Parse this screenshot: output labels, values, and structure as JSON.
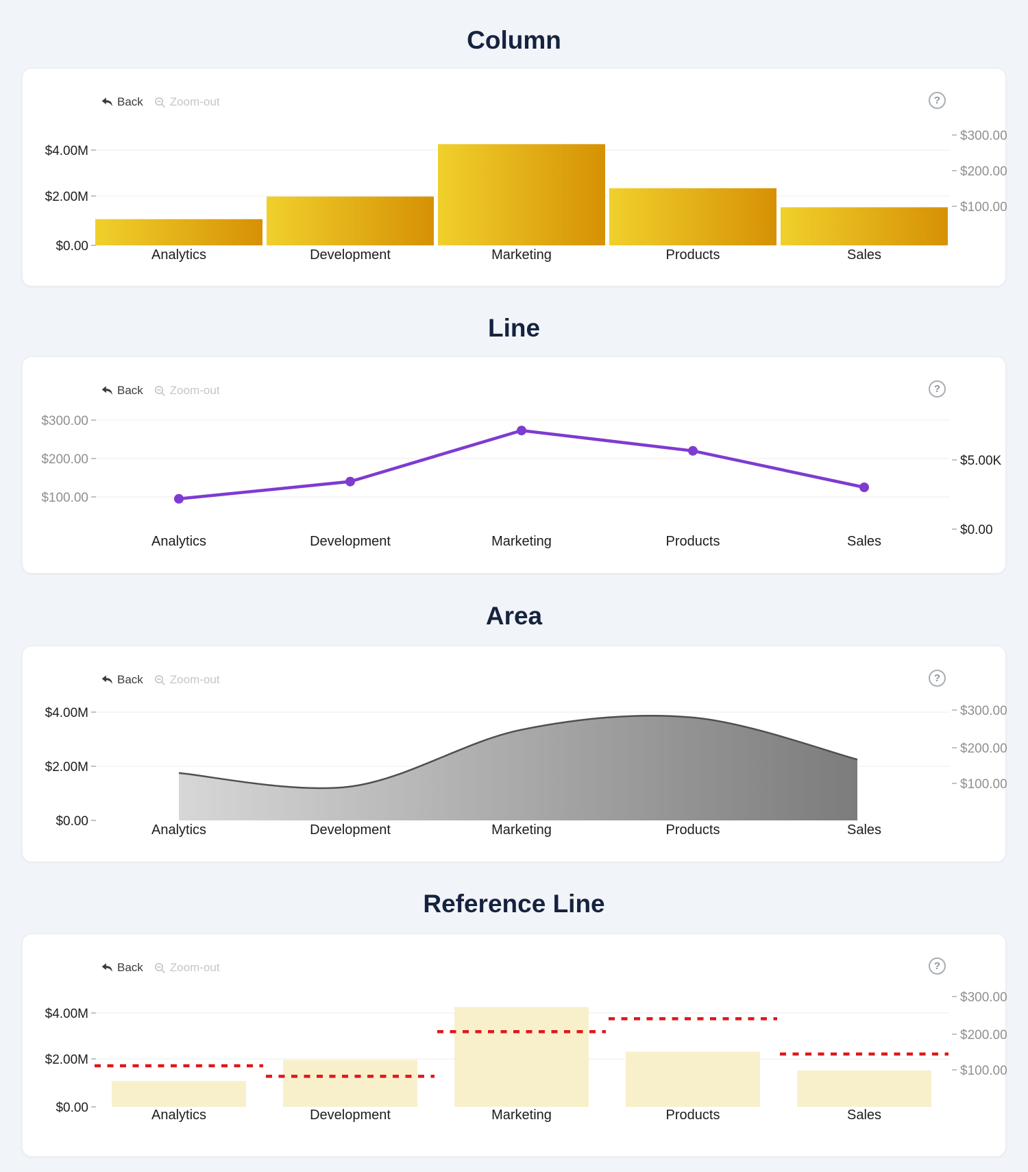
{
  "page": {
    "background": "#F1F4F9"
  },
  "toolbar": {
    "back": "Back",
    "zoom_out": "Zoom-out",
    "help": "?"
  },
  "colors": {
    "title": "#16233E",
    "bar_gradient_start": "#F0D02C",
    "bar_gradient_end": "#D69104",
    "line": "#7E3BD0",
    "area_gradient_start": "#D7D7D7",
    "area_gradient_end": "#7C7C7C",
    "area_stroke": "#4F4F4F",
    "reference_bar": "#F8F0CB",
    "reference_line": "#E0161A",
    "grid": "#ECECEC",
    "tick": "#ADADAD",
    "axis_primary": "#1D1D1D",
    "axis_secondary": "#8F8F8F",
    "category": "#1C1C1C"
  },
  "chart_data": [
    {
      "type": "bar",
      "title": "Column",
      "categories": [
        "Analytics",
        "Development",
        "Marketing",
        "Products",
        "Sales"
      ],
      "values_millions": [
        1.1,
        2.05,
        4.25,
        2.4,
        1.6
      ],
      "left_axis_ticks": [
        "$0.00",
        "$2.00M",
        "$4.00M"
      ],
      "right_axis_ticks": [
        "$100.00",
        "$200.00",
        "$300.00"
      ],
      "ylim_left": [
        0,
        4600000
      ],
      "grid": "horizontal",
      "legend": "none"
    },
    {
      "type": "line",
      "title": "Line",
      "categories": [
        "Analytics",
        "Development",
        "Marketing",
        "Products",
        "Sales"
      ],
      "values": [
        95,
        140,
        273,
        220,
        125
      ],
      "left_axis_ticks": [
        "$100.00",
        "$200.00",
        "$300.00"
      ],
      "right_axis_ticks": [
        "$0.00",
        "$5.00K"
      ],
      "grid": "horizontal",
      "legend": "none"
    },
    {
      "type": "area",
      "title": "Area",
      "categories": [
        "Analytics",
        "Development",
        "Marketing",
        "Products",
        "Sales"
      ],
      "values_millions": [
        1.75,
        1.25,
        3.35,
        3.8,
        2.25
      ],
      "left_axis_ticks": [
        "$0.00",
        "$2.00M",
        "$4.00M"
      ],
      "right_axis_ticks": [
        "$100.00",
        "$200.00",
        "$300.00"
      ],
      "grid": "horizontal",
      "legend": "none"
    },
    {
      "type": "bar-with-reference",
      "title": "Reference Line",
      "categories": [
        "Analytics",
        "Development",
        "Marketing",
        "Products",
        "Sales"
      ],
      "bar_values_millions": [
        1.1,
        2.0,
        4.25,
        2.35,
        1.55
      ],
      "reference_values_millions": [
        1.75,
        1.3,
        3.2,
        3.75,
        2.25
      ],
      "left_axis_ticks": [
        "$0.00",
        "$2.00M",
        "$4.00M"
      ],
      "right_axis_ticks": [
        "$100.00",
        "$200.00",
        "$300.00"
      ],
      "grid": "horizontal",
      "legend": "none"
    }
  ]
}
